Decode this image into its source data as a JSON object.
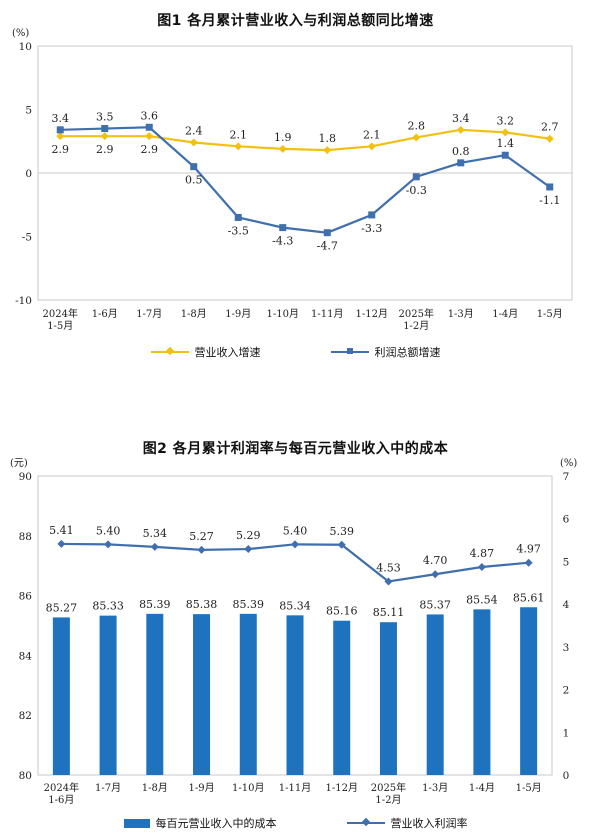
{
  "chart_data": [
    {
      "type": "line",
      "title": "图1  各月累计营业收入与利润总额同比增速",
      "y_unit": "(%)",
      "ylim": [
        -10,
        10
      ],
      "yticks": [
        10,
        5,
        0,
        -5,
        -10
      ],
      "categories": [
        "2024年\n1-5月",
        "1-6月",
        "1-7月",
        "1-8月",
        "1-9月",
        "1-10月",
        "1-11月",
        "1-12月",
        "2025年\n1-2月",
        "1-3月",
        "1-4月",
        "1-5月"
      ],
      "series": [
        {
          "name": "营业收入增速",
          "color": "#f2c011",
          "marker": "diamond",
          "values": [
            2.9,
            2.9,
            2.9,
            2.4,
            2.1,
            1.9,
            1.8,
            2.1,
            2.8,
            3.4,
            3.2,
            2.7
          ],
          "labels": [
            "2.9",
            "2.9",
            "2.9",
            "2.4",
            "2.1",
            "1.9",
            "1.8",
            "2.1",
            "2.8",
            "3.4",
            "3.2",
            "2.7"
          ]
        },
        {
          "name": "利润总额增速",
          "color": "#3f6fad",
          "marker": "square",
          "values": [
            3.4,
            3.5,
            3.6,
            0.5,
            -3.5,
            -4.3,
            -4.7,
            -3.3,
            -0.3,
            0.8,
            1.4,
            -1.1
          ],
          "labels": [
            "3.4",
            "3.5",
            "3.6",
            "0.5",
            "-3.5",
            "-4.3",
            "-4.7",
            "-3.3",
            "-0.3",
            "0.8",
            "1.4",
            "-1.1"
          ]
        }
      ],
      "legend_position": "bottom"
    },
    {
      "type": "bar",
      "title": "图2  各月累计利润率与每百元营业收入中的成本",
      "y_unit_left": "(元)",
      "y_unit_right": "(%)",
      "ylim_left": [
        80,
        90
      ],
      "yticks_left": [
        90,
        88,
        86,
        84,
        82,
        80
      ],
      "ylim_right": [
        0,
        7
      ],
      "yticks_right": [
        7,
        6,
        5,
        4,
        3,
        2,
        1,
        0
      ],
      "categories": [
        "2024年\n1-6月",
        "1-7月",
        "1-8月",
        "1-9月",
        "1-10月",
        "1-11月",
        "1-12月",
        "2025年\n1-2月",
        "1-3月",
        "1-4月",
        "1-5月"
      ],
      "bar_series": {
        "name": "每百元营业收入中的成本",
        "color": "#1f72bd",
        "values": [
          85.27,
          85.33,
          85.39,
          85.38,
          85.39,
          85.34,
          85.16,
          85.11,
          85.37,
          85.54,
          85.61
        ],
        "labels": [
          "85.27",
          "85.33",
          "85.39",
          "85.38",
          "85.39",
          "85.34",
          "85.16",
          "85.11",
          "85.37",
          "85.54",
          "85.61"
        ]
      },
      "line_series": {
        "name": "营业收入利润率",
        "color": "#3f6fad",
        "axis": "right",
        "values": [
          5.41,
          5.4,
          5.34,
          5.27,
          5.29,
          5.4,
          5.39,
          4.53,
          4.7,
          4.87,
          4.97
        ],
        "labels": [
          "5.41",
          "5.40",
          "5.34",
          "5.27",
          "5.29",
          "5.40",
          "5.39",
          "4.53",
          "4.70",
          "4.87",
          "4.97"
        ]
      },
      "legend_position": "bottom"
    }
  ]
}
